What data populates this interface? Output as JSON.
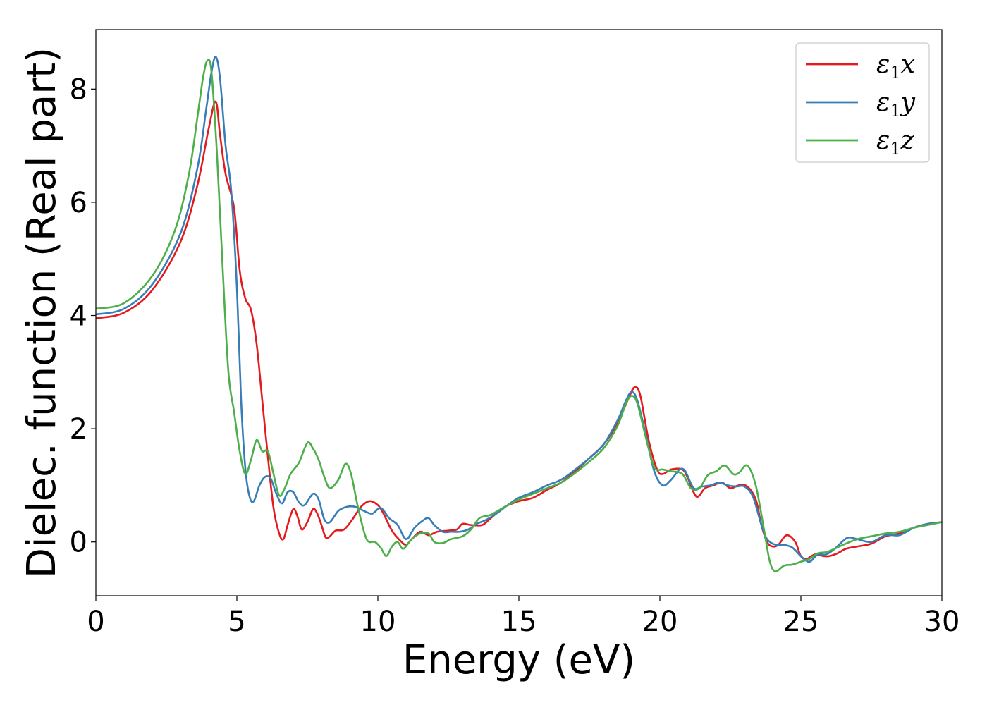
{
  "chart_data": {
    "type": "line",
    "title": "",
    "xlabel": "Energy (eV)",
    "ylabel": "Dielec. function (Real part)",
    "xlim": [
      0,
      30
    ],
    "ylim": [
      -0.95,
      9.05
    ],
    "xticks": [
      0,
      5,
      10,
      15,
      20,
      25,
      30
    ],
    "yticks": [
      0,
      2,
      4,
      6,
      8
    ],
    "grid": false,
    "legend_position": "top-right",
    "series": [
      {
        "name": "ε1x",
        "legend": {
          "main": "ε",
          "sub": "1",
          "suffix": "x"
        },
        "color": "#e41a1c",
        "points": [
          [
            0,
            3.95
          ],
          [
            1,
            4.05
          ],
          [
            2,
            4.45
          ],
          [
            3,
            5.3
          ],
          [
            3.6,
            6.3
          ],
          [
            4.0,
            7.3
          ],
          [
            4.25,
            7.78
          ],
          [
            4.4,
            7.2
          ],
          [
            4.6,
            6.5
          ],
          [
            4.9,
            5.9
          ],
          [
            5.1,
            4.8
          ],
          [
            5.3,
            4.3
          ],
          [
            5.5,
            4.1
          ],
          [
            5.7,
            3.5
          ],
          [
            5.9,
            2.5
          ],
          [
            6.1,
            1.5
          ],
          [
            6.3,
            0.6
          ],
          [
            6.5,
            0.15
          ],
          [
            6.65,
            0.05
          ],
          [
            6.8,
            0.3
          ],
          [
            7.0,
            0.58
          ],
          [
            7.15,
            0.45
          ],
          [
            7.3,
            0.22
          ],
          [
            7.5,
            0.35
          ],
          [
            7.7,
            0.58
          ],
          [
            7.85,
            0.5
          ],
          [
            8.0,
            0.3
          ],
          [
            8.15,
            0.08
          ],
          [
            8.3,
            0.1
          ],
          [
            8.5,
            0.2
          ],
          [
            8.8,
            0.22
          ],
          [
            9.1,
            0.4
          ],
          [
            9.4,
            0.62
          ],
          [
            9.7,
            0.72
          ],
          [
            10.0,
            0.65
          ],
          [
            10.2,
            0.5
          ],
          [
            10.5,
            0.2
          ],
          [
            10.8,
            0.02
          ],
          [
            11.0,
            -0.05
          ],
          [
            11.2,
            0.05
          ],
          [
            11.5,
            0.18
          ],
          [
            11.8,
            0.12
          ],
          [
            12.1,
            0.18
          ],
          [
            12.5,
            0.2
          ],
          [
            12.8,
            0.22
          ],
          [
            13.0,
            0.32
          ],
          [
            13.3,
            0.3
          ],
          [
            13.7,
            0.3
          ],
          [
            14.0,
            0.42
          ],
          [
            14.5,
            0.62
          ],
          [
            15.0,
            0.72
          ],
          [
            15.5,
            0.78
          ],
          [
            16.0,
            0.92
          ],
          [
            16.5,
            1.05
          ],
          [
            17.0,
            1.25
          ],
          [
            17.5,
            1.48
          ],
          [
            18.0,
            1.72
          ],
          [
            18.5,
            2.1
          ],
          [
            18.9,
            2.55
          ],
          [
            19.1,
            2.73
          ],
          [
            19.3,
            2.6
          ],
          [
            19.6,
            1.8
          ],
          [
            19.9,
            1.28
          ],
          [
            20.1,
            1.2
          ],
          [
            20.4,
            1.28
          ],
          [
            20.8,
            1.28
          ],
          [
            21.0,
            1.12
          ],
          [
            21.3,
            0.8
          ],
          [
            21.6,
            0.95
          ],
          [
            21.9,
            1.0
          ],
          [
            22.2,
            1.05
          ],
          [
            22.5,
            0.95
          ],
          [
            22.8,
            1.0
          ],
          [
            23.1,
            0.98
          ],
          [
            23.4,
            0.75
          ],
          [
            23.6,
            0.3
          ],
          [
            23.8,
            0.0
          ],
          [
            24.0,
            -0.08
          ],
          [
            24.2,
            -0.05
          ],
          [
            24.5,
            0.12
          ],
          [
            24.8,
            0.0
          ],
          [
            25.0,
            -0.25
          ],
          [
            25.2,
            -0.3
          ],
          [
            25.5,
            -0.22
          ],
          [
            25.8,
            -0.25
          ],
          [
            26.0,
            -0.25
          ],
          [
            26.3,
            -0.2
          ],
          [
            26.6,
            -0.12
          ],
          [
            27.0,
            -0.08
          ],
          [
            27.5,
            -0.03
          ],
          [
            28.0,
            0.1
          ],
          [
            28.5,
            0.15
          ],
          [
            29.0,
            0.25
          ],
          [
            29.5,
            0.32
          ],
          [
            30.0,
            0.35
          ]
        ]
      },
      {
        "name": "ε1y",
        "legend": {
          "main": "ε",
          "sub": "1",
          "suffix": "y"
        },
        "color": "#377eb8",
        "points": [
          [
            0,
            4.02
          ],
          [
            1,
            4.12
          ],
          [
            2,
            4.55
          ],
          [
            3,
            5.45
          ],
          [
            3.6,
            6.6
          ],
          [
            3.9,
            7.6
          ],
          [
            4.1,
            8.3
          ],
          [
            4.25,
            8.57
          ],
          [
            4.4,
            8.2
          ],
          [
            4.6,
            7.0
          ],
          [
            4.8,
            6.2
          ],
          [
            5.0,
            4.5
          ],
          [
            5.15,
            2.5
          ],
          [
            5.3,
            1.3
          ],
          [
            5.45,
            0.8
          ],
          [
            5.6,
            0.72
          ],
          [
            5.8,
            1.0
          ],
          [
            6.0,
            1.15
          ],
          [
            6.2,
            1.12
          ],
          [
            6.4,
            0.85
          ],
          [
            6.6,
            0.68
          ],
          [
            6.8,
            0.88
          ],
          [
            7.0,
            0.88
          ],
          [
            7.2,
            0.7
          ],
          [
            7.4,
            0.65
          ],
          [
            7.7,
            0.85
          ],
          [
            7.9,
            0.75
          ],
          [
            8.1,
            0.4
          ],
          [
            8.3,
            0.35
          ],
          [
            8.6,
            0.55
          ],
          [
            8.9,
            0.62
          ],
          [
            9.2,
            0.62
          ],
          [
            9.5,
            0.55
          ],
          [
            9.8,
            0.5
          ],
          [
            10.1,
            0.6
          ],
          [
            10.4,
            0.42
          ],
          [
            10.7,
            0.3
          ],
          [
            11.0,
            0.05
          ],
          [
            11.3,
            0.25
          ],
          [
            11.6,
            0.38
          ],
          [
            11.8,
            0.42
          ],
          [
            12.0,
            0.3
          ],
          [
            12.3,
            0.18
          ],
          [
            12.6,
            0.18
          ],
          [
            12.9,
            0.18
          ],
          [
            13.2,
            0.22
          ],
          [
            13.5,
            0.32
          ],
          [
            13.8,
            0.38
          ],
          [
            14.2,
            0.5
          ],
          [
            14.6,
            0.65
          ],
          [
            15.0,
            0.78
          ],
          [
            15.5,
            0.88
          ],
          [
            16.0,
            1.0
          ],
          [
            16.5,
            1.1
          ],
          [
            17.0,
            1.28
          ],
          [
            17.5,
            1.48
          ],
          [
            18.0,
            1.72
          ],
          [
            18.5,
            2.15
          ],
          [
            18.8,
            2.5
          ],
          [
            19.0,
            2.65
          ],
          [
            19.2,
            2.5
          ],
          [
            19.5,
            1.9
          ],
          [
            19.8,
            1.25
          ],
          [
            20.1,
            1.0
          ],
          [
            20.4,
            1.1
          ],
          [
            20.7,
            1.28
          ],
          [
            20.9,
            1.25
          ],
          [
            21.2,
            0.95
          ],
          [
            21.5,
            0.98
          ],
          [
            21.8,
            1.0
          ],
          [
            22.1,
            1.05
          ],
          [
            22.4,
            1.0
          ],
          [
            22.7,
            0.98
          ],
          [
            23.0,
            0.98
          ],
          [
            23.3,
            0.8
          ],
          [
            23.6,
            0.3
          ],
          [
            23.8,
            0.05
          ],
          [
            24.1,
            -0.05
          ],
          [
            24.4,
            -0.05
          ],
          [
            24.7,
            -0.1
          ],
          [
            25.0,
            -0.25
          ],
          [
            25.3,
            -0.35
          ],
          [
            25.6,
            -0.22
          ],
          [
            25.9,
            -0.22
          ],
          [
            26.2,
            -0.12
          ],
          [
            26.5,
            0.02
          ],
          [
            26.7,
            0.08
          ],
          [
            27.0,
            0.05
          ],
          [
            27.5,
            0.0
          ],
          [
            28.0,
            0.12
          ],
          [
            28.5,
            0.12
          ],
          [
            29.0,
            0.25
          ],
          [
            29.5,
            0.32
          ],
          [
            30.0,
            0.35
          ]
        ]
      },
      {
        "name": "ε1z",
        "legend": {
          "main": "ε",
          "sub": "1",
          "suffix": "z"
        },
        "color": "#4daf4a",
        "points": [
          [
            0,
            4.12
          ],
          [
            1,
            4.22
          ],
          [
            2,
            4.7
          ],
          [
            2.8,
            5.5
          ],
          [
            3.3,
            6.5
          ],
          [
            3.6,
            7.5
          ],
          [
            3.8,
            8.2
          ],
          [
            3.95,
            8.5
          ],
          [
            4.1,
            8.3
          ],
          [
            4.3,
            6.8
          ],
          [
            4.5,
            4.8
          ],
          [
            4.7,
            3.0
          ],
          [
            4.9,
            2.3
          ],
          [
            5.1,
            1.6
          ],
          [
            5.3,
            1.2
          ],
          [
            5.5,
            1.45
          ],
          [
            5.7,
            1.8
          ],
          [
            5.9,
            1.6
          ],
          [
            6.1,
            1.6
          ],
          [
            6.3,
            1.2
          ],
          [
            6.5,
            0.82
          ],
          [
            6.7,
            0.95
          ],
          [
            6.9,
            1.2
          ],
          [
            7.2,
            1.4
          ],
          [
            7.5,
            1.75
          ],
          [
            7.7,
            1.65
          ],
          [
            7.9,
            1.45
          ],
          [
            8.1,
            1.15
          ],
          [
            8.3,
            0.95
          ],
          [
            8.6,
            1.1
          ],
          [
            8.85,
            1.38
          ],
          [
            9.05,
            1.2
          ],
          [
            9.3,
            0.6
          ],
          [
            9.6,
            0.05
          ],
          [
            9.9,
            0.0
          ],
          [
            10.1,
            -0.1
          ],
          [
            10.3,
            -0.25
          ],
          [
            10.5,
            -0.08
          ],
          [
            10.7,
            0.0
          ],
          [
            10.9,
            -0.12
          ],
          [
            11.2,
            0.05
          ],
          [
            11.5,
            0.15
          ],
          [
            11.8,
            0.15
          ],
          [
            12.0,
            0.0
          ],
          [
            12.3,
            -0.02
          ],
          [
            12.6,
            0.05
          ],
          [
            13.0,
            0.1
          ],
          [
            13.3,
            0.22
          ],
          [
            13.6,
            0.42
          ],
          [
            14.0,
            0.48
          ],
          [
            14.5,
            0.62
          ],
          [
            15.0,
            0.75
          ],
          [
            15.5,
            0.85
          ],
          [
            16.0,
            0.95
          ],
          [
            16.5,
            1.05
          ],
          [
            17.0,
            1.22
          ],
          [
            17.5,
            1.42
          ],
          [
            18.0,
            1.65
          ],
          [
            18.5,
            2.05
          ],
          [
            18.8,
            2.45
          ],
          [
            19.0,
            2.58
          ],
          [
            19.2,
            2.45
          ],
          [
            19.5,
            1.85
          ],
          [
            19.8,
            1.32
          ],
          [
            20.1,
            1.28
          ],
          [
            20.4,
            1.25
          ],
          [
            20.8,
            1.2
          ],
          [
            21.1,
            0.95
          ],
          [
            21.4,
            0.95
          ],
          [
            21.7,
            1.18
          ],
          [
            22.0,
            1.25
          ],
          [
            22.3,
            1.35
          ],
          [
            22.6,
            1.2
          ],
          [
            22.8,
            1.22
          ],
          [
            23.1,
            1.35
          ],
          [
            23.4,
            1.0
          ],
          [
            23.7,
            0.2
          ],
          [
            23.9,
            -0.35
          ],
          [
            24.1,
            -0.52
          ],
          [
            24.4,
            -0.42
          ],
          [
            24.7,
            -0.4
          ],
          [
            25.0,
            -0.35
          ],
          [
            25.3,
            -0.3
          ],
          [
            25.6,
            -0.2
          ],
          [
            25.9,
            -0.18
          ],
          [
            26.2,
            -0.12
          ],
          [
            26.5,
            -0.05
          ],
          [
            27.0,
            0.05
          ],
          [
            27.5,
            0.1
          ],
          [
            28.0,
            0.15
          ],
          [
            28.5,
            0.18
          ],
          [
            29.0,
            0.25
          ],
          [
            29.5,
            0.3
          ],
          [
            30.0,
            0.35
          ]
        ]
      }
    ]
  }
}
